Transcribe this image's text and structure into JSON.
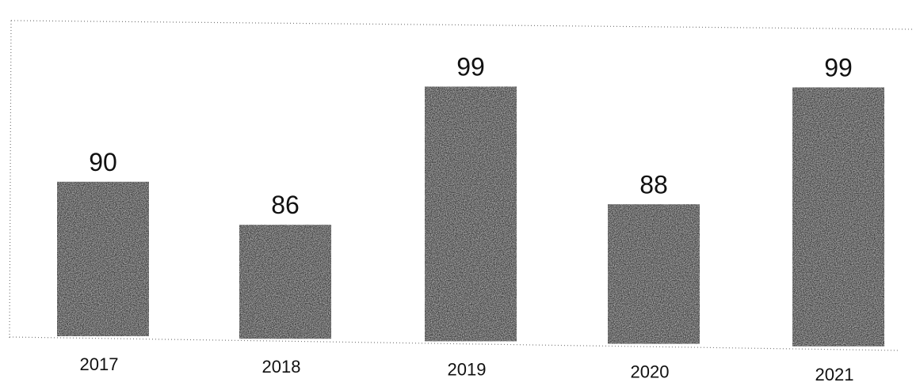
{
  "chart_data": {
    "type": "bar",
    "categories": [
      "2017",
      "2018",
      "2019",
      "2020",
      "2021"
    ],
    "values": [
      90,
      86,
      99,
      88,
      99
    ],
    "title": "",
    "xlabel": "",
    "ylabel": "",
    "ylim": [
      75,
      100
    ],
    "grid": false,
    "legend": "none",
    "data_labels": [
      "90",
      "86",
      "99",
      "88",
      "99"
    ],
    "bar_color": "#3c3c3c"
  }
}
